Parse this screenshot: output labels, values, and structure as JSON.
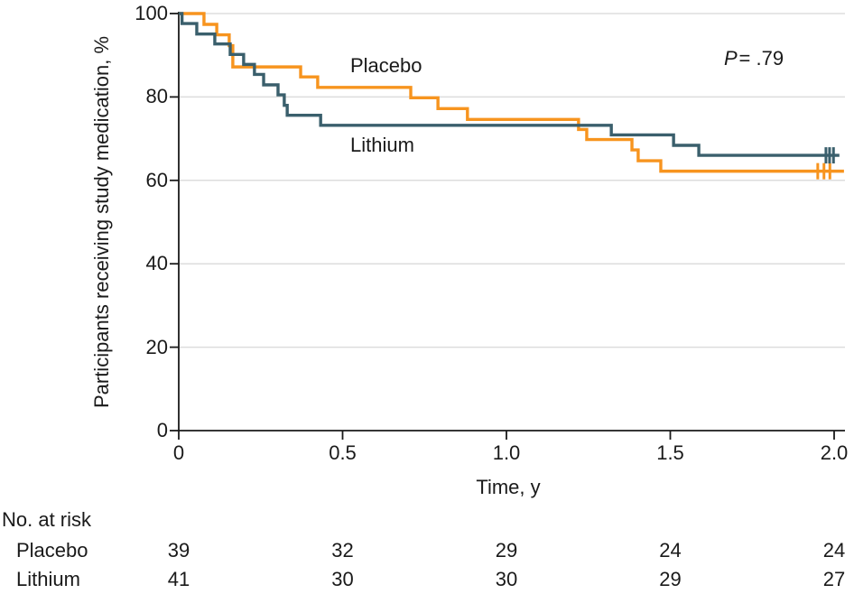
{
  "figure": {
    "background": "#ffffff",
    "text_color": "#1a1a1a",
    "gridline_color": "#dddddd",
    "axis_color": "#1a1a1a"
  },
  "chart_data": {
    "type": "line",
    "subtype": "kaplan-meier-step",
    "title": "",
    "xlabel": "Time, y",
    "ylabel": "Participants receiving study medication, %",
    "xlim": [
      0,
      2.0
    ],
    "ylim": [
      0,
      100
    ],
    "xticks": [
      "0",
      "0.5",
      "1.0",
      "1.5",
      "2.0"
    ],
    "yticks": [
      "100",
      "80",
      "60",
      "40",
      "20",
      "0"
    ],
    "grid": true,
    "legend_position": "inline-curve-labels",
    "annotation": {
      "p_symbol": "P",
      "p_value": "= .79"
    },
    "series": [
      {
        "name": "Placebo",
        "color": "#F7941E",
        "steps": [
          [
            0,
            100
          ],
          [
            0.077,
            97.4
          ],
          [
            0.116,
            94.9
          ],
          [
            0.154,
            92.3
          ],
          [
            0.165,
            87.2
          ],
          [
            0.372,
            84.8
          ],
          [
            0.424,
            82.3
          ],
          [
            0.708,
            79.8
          ],
          [
            0.791,
            77.2
          ],
          [
            0.881,
            74.6
          ],
          [
            1.22,
            72.2
          ],
          [
            1.245,
            69.8
          ],
          [
            1.383,
            67.3
          ],
          [
            1.402,
            64.7
          ],
          [
            1.471,
            62.2
          ]
        ],
        "end_t": 2.03,
        "censor_pct": 62.2,
        "censor_times": [
          1.95,
          1.969,
          1.987
        ]
      },
      {
        "name": "Lithium",
        "color": "#3A5F6C",
        "steps": [
          [
            0,
            100
          ],
          [
            0.01,
            97.6
          ],
          [
            0.055,
            95.1
          ],
          [
            0.11,
            92.7
          ],
          [
            0.157,
            90.2
          ],
          [
            0.198,
            87.8
          ],
          [
            0.231,
            85.4
          ],
          [
            0.259,
            82.9
          ],
          [
            0.303,
            80.5
          ],
          [
            0.322,
            78.0
          ],
          [
            0.331,
            75.6
          ],
          [
            0.433,
            73.2
          ],
          [
            1.32,
            70.9
          ],
          [
            1.51,
            68.4
          ],
          [
            1.587,
            66.0
          ]
        ],
        "end_t": 2.016,
        "censor_pct": 66.0,
        "censor_times": [
          1.975,
          1.986,
          1.998
        ]
      }
    ],
    "risk_table": {
      "title": "No. at risk",
      "times": [
        "0",
        "0.5",
        "1.0",
        "1.5",
        "2.0"
      ],
      "rows": [
        {
          "label": "Placebo",
          "counts": [
            "39",
            "32",
            "29",
            "24",
            "24"
          ]
        },
        {
          "label": "Lithium",
          "counts": [
            "41",
            "30",
            "30",
            "29",
            "27"
          ]
        }
      ]
    }
  }
}
